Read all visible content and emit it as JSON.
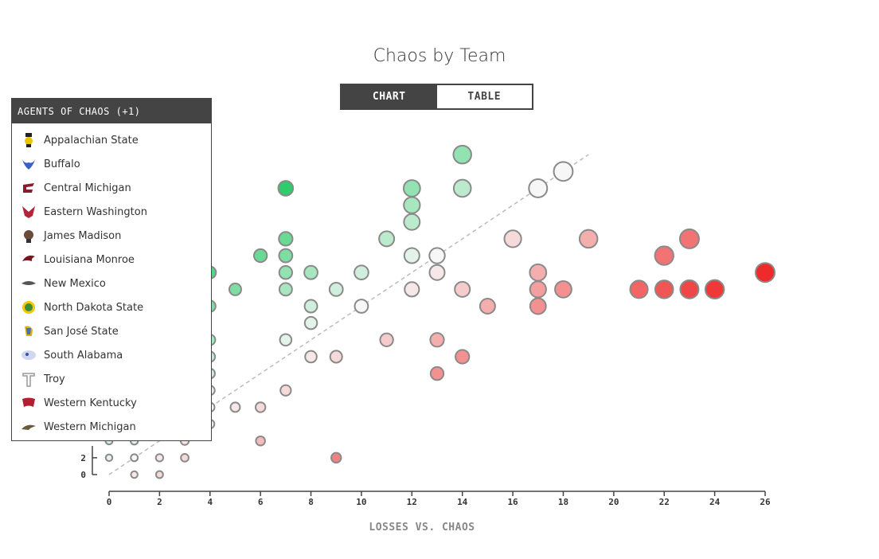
{
  "title": "Chaos by Team",
  "toggle": {
    "chart_label": "CHART",
    "table_label": "TABLE",
    "active": "CHART"
  },
  "legend": {
    "header": "AGENTS OF CHAOS (+1)",
    "teams": [
      {
        "name": "Appalachian State",
        "logo": "mountaineer-icon",
        "color": "#222222"
      },
      {
        "name": "Buffalo",
        "logo": "bull-icon",
        "color": "#3a5fc8"
      },
      {
        "name": "Central Michigan",
        "logo": "cm-letter-icon",
        "color": "#8a1c2b"
      },
      {
        "name": "Eastern Washington",
        "logo": "eagle-icon",
        "color": "#b3243a"
      },
      {
        "name": "James Madison",
        "logo": "duke-icon",
        "color": "#6b4a3a"
      },
      {
        "name": "Louisiana Monroe",
        "logo": "warhawk-icon",
        "color": "#7a1420"
      },
      {
        "name": "New Mexico",
        "logo": "lobo-icon",
        "color": "#555555"
      },
      {
        "name": "North Dakota State",
        "logo": "bison-icon",
        "color": "#3f8a3a"
      },
      {
        "name": "San José State",
        "logo": "spartan-icon",
        "color": "#4a70b0"
      },
      {
        "name": "South Alabama",
        "logo": "jaguar-icon",
        "color": "#3a4fa0"
      },
      {
        "name": "Troy",
        "logo": "trojan-t-icon",
        "color": "#999999"
      },
      {
        "name": "Western Kentucky",
        "logo": "towel-icon",
        "color": "#b02030"
      },
      {
        "name": "Western Michigan",
        "logo": "bronco-icon",
        "color": "#6b5a3a"
      }
    ]
  },
  "chart_data": {
    "type": "scatter",
    "title": "Chaos by Team",
    "xlabel": "LOSSES VS. CHAOS",
    "ylabel": "",
    "xlim": [
      0,
      26
    ],
    "ylim": [
      0,
      20
    ],
    "x_ticks": [
      "0",
      "2",
      "4",
      "6",
      "8",
      "10",
      "12",
      "14",
      "16",
      "18",
      "20",
      "22",
      "24",
      "26"
    ],
    "y_ticks": [
      "0",
      "2"
    ],
    "diagonal": {
      "from": [
        0,
        0
      ],
      "to": [
        19,
        19
      ]
    },
    "colors": {
      "green": "#2ecc6a",
      "red": "#ee2a2a",
      "neutral": "#f7f7f7",
      "stroke": "#8a8a8a"
    },
    "points": [
      [
        0,
        1
      ],
      [
        1,
        0
      ],
      [
        1,
        1
      ],
      [
        2,
        0
      ],
      [
        2,
        1
      ],
      [
        3,
        1
      ],
      [
        0,
        2
      ],
      [
        1,
        2
      ],
      [
        3,
        2
      ],
      [
        4,
        3
      ],
      [
        4,
        4
      ],
      [
        4,
        5
      ],
      [
        4,
        6
      ],
      [
        4,
        7
      ],
      [
        4,
        8
      ],
      [
        4,
        10
      ],
      [
        4,
        12
      ],
      [
        5,
        4
      ],
      [
        6,
        2
      ],
      [
        6,
        4
      ],
      [
        7,
        5
      ],
      [
        9,
        1
      ],
      [
        14,
        19
      ],
      [
        7,
        17
      ],
      [
        12,
        17
      ],
      [
        14,
        17
      ],
      [
        17,
        17
      ],
      [
        18,
        18
      ],
      [
        12,
        16
      ],
      [
        12,
        15
      ],
      [
        7,
        14
      ],
      [
        11,
        14
      ],
      [
        16,
        14
      ],
      [
        19,
        14
      ],
      [
        23,
        14
      ],
      [
        6,
        13
      ],
      [
        7,
        13
      ],
      [
        12,
        13
      ],
      [
        13,
        13
      ],
      [
        22,
        13
      ],
      [
        7,
        12
      ],
      [
        8,
        12
      ],
      [
        10,
        12
      ],
      [
        13,
        12
      ],
      [
        17,
        12
      ],
      [
        26,
        12
      ],
      [
        5,
        11
      ],
      [
        7,
        11
      ],
      [
        9,
        11
      ],
      [
        12,
        11
      ],
      [
        14,
        11
      ],
      [
        17,
        11
      ],
      [
        18,
        11
      ],
      [
        21,
        11
      ],
      [
        22,
        11
      ],
      [
        23,
        11
      ],
      [
        24,
        11
      ],
      [
        8,
        10
      ],
      [
        10,
        10
      ],
      [
        15,
        10
      ],
      [
        17,
        10
      ],
      [
        8,
        9
      ],
      [
        7,
        8
      ],
      [
        11,
        8
      ],
      [
        13,
        8
      ],
      [
        8,
        7
      ],
      [
        9,
        7
      ],
      [
        14,
        7
      ],
      [
        13,
        6
      ]
    ]
  },
  "axes_extra": {
    "origin_label": "0"
  }
}
